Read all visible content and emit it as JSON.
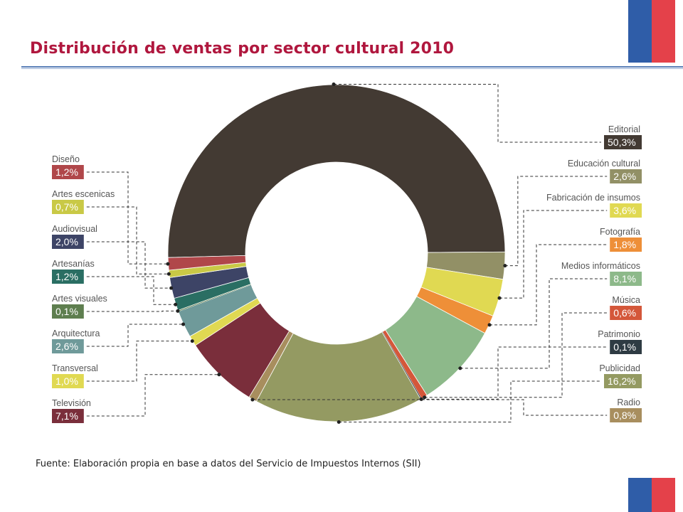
{
  "title": "Distribución de ventas por sector cultural 2010",
  "source": "Fuente: Elaboración propia en base a datos del Servicio de Impuestos Internos (SII)",
  "colors": {
    "title": "#B0173E",
    "flag_blue": "#2F5DA8",
    "flag_red": "#E4414A",
    "rule": "#5B80B8"
  },
  "chart_data": {
    "type": "pie",
    "subtype": "donut",
    "title": "",
    "slices": [
      {
        "label": "Editorial",
        "value_label": "50,3%",
        "value": 50.3,
        "color": "#433A33"
      },
      {
        "label": "Educación cultural",
        "value_label": "2,6%",
        "value": 2.6,
        "color": "#929066"
      },
      {
        "label": "Fabricación de insumos",
        "value_label": "3,6%",
        "value": 3.6,
        "color": "#E0D952"
      },
      {
        "label": "Fotografía",
        "value_label": "1,8%",
        "value": 1.8,
        "color": "#EE8F38"
      },
      {
        "label": "Medios informáticos",
        "value_label": "8,1%",
        "value": 8.1,
        "color": "#8DB98A"
      },
      {
        "label": "Música",
        "value_label": "0,6%",
        "value": 0.6,
        "color": "#D4573A"
      },
      {
        "label": "Patrimonio",
        "value_label": "0,1%",
        "value": 0.1,
        "color": "#2E3B43"
      },
      {
        "label": "Publicidad",
        "value_label": "16,2%",
        "value": 16.2,
        "color": "#949A62"
      },
      {
        "label": "Radio",
        "value_label": "0,8%",
        "value": 0.8,
        "color": "#A88E5E"
      },
      {
        "label": "Televisión",
        "value_label": "7,1%",
        "value": 7.1,
        "color": "#7A2E3B"
      },
      {
        "label": "Transversal",
        "value_label": "1,0%",
        "value": 1.0,
        "color": "#E0D952"
      },
      {
        "label": "Arquitectura",
        "value_label": "2,6%",
        "value": 2.6,
        "color": "#6F9A9A"
      },
      {
        "label": "Artes visuales",
        "value_label": "0,1%",
        "value": 0.1,
        "color": "#5E7E4F"
      },
      {
        "label": "Artesanías",
        "value_label": "1,2%",
        "value": 1.2,
        "color": "#2A6E63"
      },
      {
        "label": "Audiovisual",
        "value_label": "2,0%",
        "value": 2.0,
        "color": "#3D4466"
      },
      {
        "label": "Artes escenicas",
        "value_label": "0,7%",
        "value": 0.7,
        "color": "#C9C946"
      },
      {
        "label": "Diseño",
        "value_label": "1,2%",
        "value": 1.2,
        "color": "#B0474A"
      }
    ],
    "legend_right": [
      "Editorial",
      "Educación cultural",
      "Fabricación de insumos",
      "Fotografía",
      "Medios informáticos",
      "Música",
      "Patrimonio",
      "Publicidad",
      "Radio"
    ],
    "legend_left": [
      "Diseño",
      "Artes escenicas",
      "Audiovisual",
      "Artesanías",
      "Artes visuales",
      "Arquitectura",
      "Transversal",
      "Televisión"
    ]
  }
}
